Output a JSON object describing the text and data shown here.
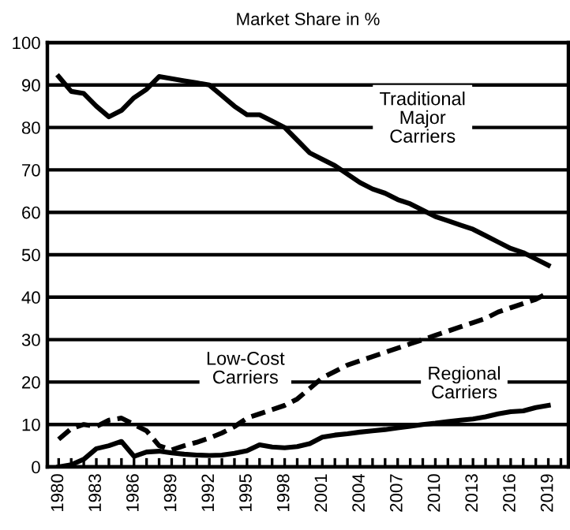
{
  "chart_data": {
    "type": "line",
    "title": "Market Share in %",
    "x": [
      1980,
      1981,
      1982,
      1983,
      1984,
      1985,
      1986,
      1987,
      1988,
      1989,
      1990,
      1991,
      1992,
      1993,
      1994,
      1995,
      1996,
      1997,
      1998,
      1999,
      2000,
      2001,
      2002,
      2003,
      2004,
      2005,
      2006,
      2007,
      2008,
      2009,
      2010,
      2011,
      2012,
      2013,
      2014,
      2015,
      2016,
      2017,
      2018,
      2019
    ],
    "series": [
      {
        "name": "Traditional\nMajor\nCarriers",
        "color": "#000000",
        "line_style": "solid",
        "values": [
          92,
          88.5,
          88,
          85,
          82.5,
          84,
          87,
          89,
          92,
          91.5,
          91,
          90.5,
          90,
          87.5,
          85,
          83,
          83,
          81.5,
          80,
          77,
          74,
          72.5,
          71,
          69,
          67,
          65.5,
          64.5,
          63,
          62,
          60.5,
          59,
          58,
          57,
          56,
          54.5,
          53,
          51.5,
          50.5,
          49,
          47.5
        ]
      },
      {
        "name": "Low-Cost\nCarriers",
        "color": "#000000",
        "line_style": "dashed",
        "values": [
          6.5,
          9,
          10,
          9.5,
          11,
          11.5,
          10,
          8.5,
          5,
          4,
          5,
          5.8,
          6.8,
          8,
          9.5,
          11.5,
          12.5,
          13.5,
          14.5,
          16,
          18.5,
          21,
          22.5,
          24,
          25,
          26,
          27,
          28,
          29,
          30,
          31,
          32,
          33,
          34,
          35,
          36.5,
          37.5,
          38.5,
          39.5,
          41
        ]
      },
      {
        "name": "Regional\nCarriers",
        "color": "#000000",
        "line_style": "solid",
        "values": [
          0,
          0.5,
          1.8,
          4.3,
          5,
          6,
          2.5,
          3.5,
          3.7,
          3.3,
          3,
          2.8,
          2.7,
          2.8,
          3.2,
          3.8,
          5.2,
          4.7,
          4.5,
          4.8,
          5.5,
          7,
          7.5,
          7.8,
          8.2,
          8.5,
          8.8,
          9.2,
          9.6,
          10,
          10.3,
          10.7,
          11,
          11.3,
          11.8,
          12.5,
          13,
          13.2,
          14,
          14.5
        ]
      }
    ],
    "xlim": [
      1979.1,
      2020.6
    ],
    "xticks": [
      1980,
      {
        "value": 1981,
        "label": null
      },
      {
        "value": 1982,
        "label": null
      },
      1983,
      {
        "value": 1984,
        "label": null
      },
      {
        "value": 1985,
        "label": null
      },
      1986,
      {
        "value": 1987,
        "label": null
      },
      {
        "value": 1988,
        "label": null
      },
      1989,
      {
        "value": 1990,
        "label": null
      },
      {
        "value": 1991,
        "label": null
      },
      1992,
      {
        "value": 1993,
        "label": null
      },
      {
        "value": 1994,
        "label": null
      },
      1995,
      {
        "value": 1996,
        "label": null
      },
      {
        "value": 1997,
        "label": null
      },
      1998,
      {
        "value": 1999,
        "label": null
      },
      {
        "value": 2000,
        "label": null
      },
      2001,
      {
        "value": 2002,
        "label": null
      },
      {
        "value": 2003,
        "label": null
      },
      2004,
      {
        "value": 2005,
        "label": null
      },
      {
        "value": 2006,
        "label": null
      },
      2007,
      {
        "value": 2008,
        "label": null
      },
      {
        "value": 2009,
        "label": null
      },
      2010,
      {
        "value": 2011,
        "label": null
      },
      {
        "value": 2012,
        "label": null
      },
      2013,
      {
        "value": 2014,
        "label": null
      },
      {
        "value": 2015,
        "label": null
      },
      2016,
      {
        "value": 2017,
        "label": null
      },
      {
        "value": 2018,
        "label": null
      },
      2019,
      {
        "value": 2020,
        "label": null
      }
    ],
    "ylim": [
      0,
      100
    ],
    "yticks": [
      0,
      10,
      20,
      30,
      40,
      50,
      60,
      70,
      80,
      90,
      100
    ],
    "grid": "y",
    "legend": false,
    "marker": "none"
  }
}
